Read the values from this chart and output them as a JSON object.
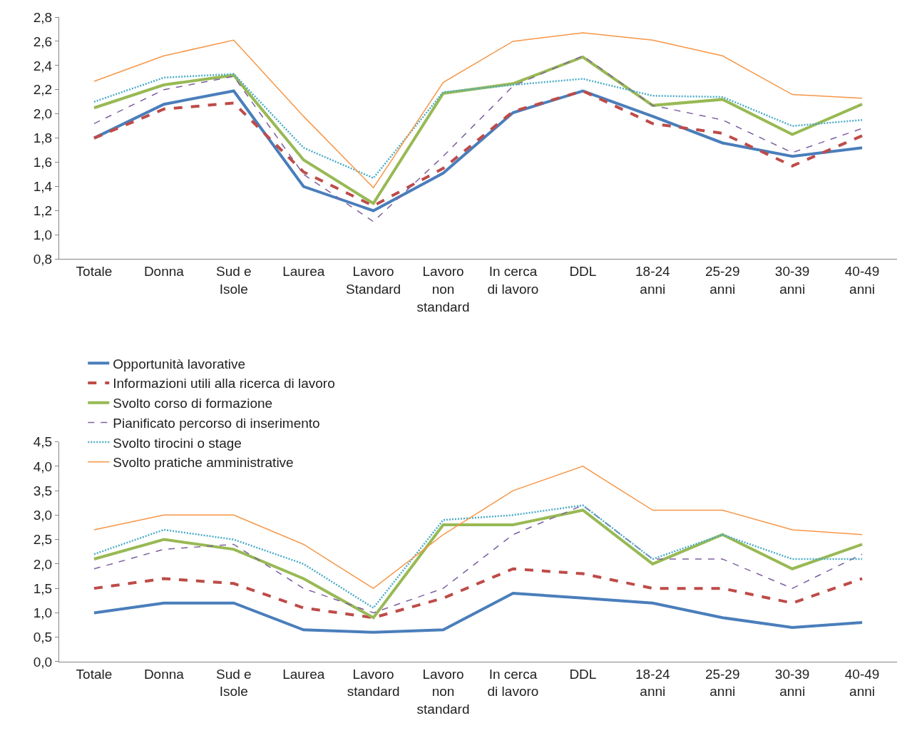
{
  "chart_data": [
    {
      "type": "line",
      "categories": [
        "Totale",
        "Donna",
        "Sud e\nIsole",
        "Laurea",
        "Lavoro\nStandard",
        "Lavoro\nnon\nstandard",
        "In cerca\ndi lavoro",
        "DDL",
        "18-24\nanni",
        "25-29\nanni",
        "30-39\nanni",
        "40-49\nanni"
      ],
      "ylim": [
        0.8,
        2.8
      ],
      "yticks": [
        {
          "value": 0.8,
          "label": "0,8"
        },
        {
          "value": 1.0,
          "label": "1,0"
        },
        {
          "value": 1.2,
          "label": "1,2"
        },
        {
          "value": 1.4,
          "label": "1,4"
        },
        {
          "value": 1.6,
          "label": "1,6"
        },
        {
          "value": 1.8,
          "label": "1,8"
        },
        {
          "value": 2.0,
          "label": "2,0"
        },
        {
          "value": 2.2,
          "label": "2,2"
        },
        {
          "value": 2.4,
          "label": "2,4"
        },
        {
          "value": 2.6,
          "label": "2,6"
        },
        {
          "value": 2.8,
          "label": "2,8"
        }
      ],
      "grid": false,
      "legend": "bottom",
      "marker": "none",
      "series": [
        {
          "name": "Opportunità lavorative",
          "color": "#4a7ebb",
          "line_style": "solid",
          "values": [
            1.8,
            2.08,
            2.19,
            1.4,
            1.2,
            1.51,
            2.01,
            2.19,
            1.98,
            1.76,
            1.65,
            1.72
          ]
        },
        {
          "name": "Informazioni utili alla ricerca di lavoro",
          "color": "#be4b48",
          "line_style": "dashed",
          "values": [
            1.8,
            2.04,
            2.09,
            1.52,
            1.24,
            1.55,
            2.02,
            2.19,
            1.92,
            1.84,
            1.57,
            1.82
          ]
        },
        {
          "name": "Svolto corso di formazione",
          "color": "#98b954",
          "line_style": "solid",
          "values": [
            2.05,
            2.24,
            2.32,
            1.62,
            1.26,
            2.17,
            2.25,
            2.47,
            2.07,
            2.12,
            1.83,
            2.08
          ]
        },
        {
          "name": "Pianificato percorso di inserimento",
          "color": "#7d60a0",
          "line_style": "dashed",
          "values": [
            1.92,
            2.2,
            2.31,
            1.5,
            1.11,
            1.65,
            2.23,
            2.48,
            2.07,
            1.95,
            1.68,
            1.88
          ]
        },
        {
          "name": "Svolto tirocini o stage",
          "color": "#4bacc6",
          "line_style": "dotted",
          "values": [
            2.1,
            2.3,
            2.33,
            1.72,
            1.47,
            2.18,
            2.24,
            2.29,
            2.15,
            2.14,
            1.9,
            1.95
          ]
        },
        {
          "name": "Svolto pratiche amministrative",
          "color": "#f79646",
          "line_style": "solid",
          "values": [
            2.27,
            2.48,
            2.61,
            1.98,
            1.39,
            2.26,
            2.6,
            2.67,
            2.61,
            2.48,
            2.16,
            2.13
          ]
        }
      ]
    },
    {
      "type": "line",
      "categories": [
        "Totale",
        "Donna",
        "Sud e\nIsole",
        "Laurea",
        "Lavoro\nstandard",
        "Lavoro\nnon\nstandard",
        "In cerca\ndi lavoro",
        "DDL",
        "18-24\nanni",
        "25-29\nanni",
        "30-39\nanni",
        "40-49\nanni"
      ],
      "ylim": [
        0.0,
        4.5
      ],
      "yticks": [
        {
          "value": 0.0,
          "label": "0,0"
        },
        {
          "value": 0.5,
          "label": "0,5"
        },
        {
          "value": 1.0,
          "label": "1,0"
        },
        {
          "value": 1.5,
          "label": "1,5"
        },
        {
          "value": 2.0,
          "label": "2,0"
        },
        {
          "value": 2.5,
          "label": "2,5"
        },
        {
          "value": 3.0,
          "label": "3,0"
        },
        {
          "value": 3.5,
          "label": "3,5"
        },
        {
          "value": 4.0,
          "label": "4,0"
        },
        {
          "value": 4.5,
          "label": "4,5"
        }
      ],
      "grid": false,
      "marker": "none",
      "series": [
        {
          "color": "#4a7ebb",
          "line_style": "solid",
          "values": [
            1.0,
            1.2,
            1.2,
            0.65,
            0.6,
            0.65,
            1.4,
            1.3,
            1.2,
            0.9,
            0.7,
            0.8
          ]
        },
        {
          "color": "#be4b48",
          "line_style": "dashed",
          "values": [
            1.5,
            1.7,
            1.6,
            1.1,
            0.9,
            1.3,
            1.9,
            1.8,
            1.5,
            1.5,
            1.2,
            1.7
          ]
        },
        {
          "color": "#98b954",
          "line_style": "solid",
          "values": [
            2.1,
            2.5,
            2.3,
            1.7,
            0.9,
            2.8,
            2.8,
            3.1,
            2.0,
            2.6,
            1.9,
            2.4
          ]
        },
        {
          "color": "#7d60a0",
          "line_style": "dashed",
          "values": [
            1.9,
            2.3,
            2.4,
            1.5,
            1.0,
            1.5,
            2.6,
            3.2,
            2.1,
            2.1,
            1.5,
            2.2
          ]
        },
        {
          "color": "#4bacc6",
          "line_style": "dotted",
          "values": [
            2.2,
            2.7,
            2.5,
            2.0,
            1.1,
            2.9,
            3.0,
            3.2,
            2.1,
            2.6,
            2.1,
            2.1
          ]
        },
        {
          "color": "#f79646",
          "line_style": "solid",
          "values": [
            2.7,
            3.0,
            3.0,
            2.4,
            1.5,
            2.6,
            3.5,
            4.0,
            3.1,
            3.1,
            2.7,
            2.6
          ]
        }
      ]
    }
  ]
}
